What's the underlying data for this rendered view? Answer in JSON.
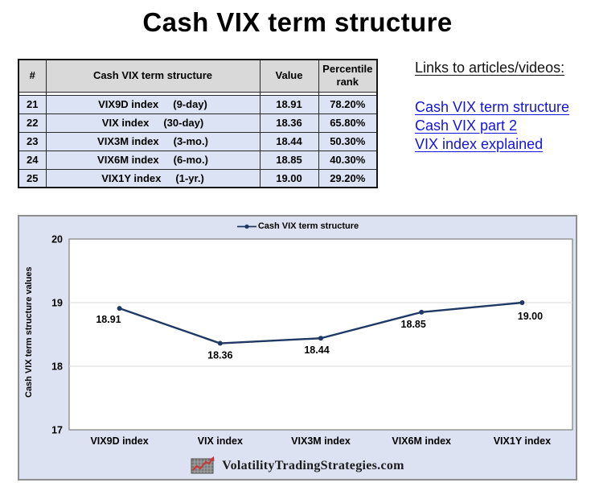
{
  "page_title": "Cash VIX term structure",
  "table": {
    "headers": {
      "num": "#",
      "name": "Cash VIX term structure",
      "value": "Value",
      "percentile": "Percentile rank"
    },
    "rows": [
      {
        "num": "21",
        "name": "VIX9D index",
        "period": "(9-day)",
        "value": "18.91",
        "percentile": "78.20%"
      },
      {
        "num": "22",
        "name": "VIX index",
        "period": "(30-day)",
        "value": "18.36",
        "percentile": "65.80%"
      },
      {
        "num": "23",
        "name": "VIX3M index",
        "period": "(3-mo.)",
        "value": "18.44",
        "percentile": "50.30%"
      },
      {
        "num": "24",
        "name": "VIX6M index",
        "period": "(6-mo.)",
        "value": "18.85",
        "percentile": "40.30%"
      },
      {
        "num": "25",
        "name": "VIX1Y index",
        "period": "(1-yr.)",
        "value": "19.00",
        "percentile": "29.20%"
      }
    ]
  },
  "links": {
    "heading": "Links to articles/videos:",
    "items": [
      "Cash VIX term structure",
      "Cash VIX part 2",
      "VIX index explained"
    ]
  },
  "chart_data": {
    "type": "line",
    "title": "Cash VIX term structure",
    "categories": [
      "VIX9D index",
      "VIX index",
      "VIX3M index",
      "VIX6M index",
      "VIX1Y index"
    ],
    "values": [
      18.91,
      18.36,
      18.44,
      18.85,
      19.0
    ],
    "data_labels": [
      "18.91",
      "18.36",
      "18.44",
      "18.85",
      "19.00"
    ],
    "xlabel": "",
    "ylabel": "Cash VIX term structure values",
    "ylim": [
      17,
      20
    ],
    "yticks": [
      20,
      19,
      18,
      17
    ],
    "grid": true,
    "legend_position": "top",
    "line_color": "#1f3864"
  },
  "footer": {
    "brand": "VolatilityTradingStrategies.com"
  },
  "colors": {
    "table_header_bg": "#d9d9d9",
    "table_row_bg": "#dce3f4",
    "chart_bg": "#dce2f1",
    "plot_bg": "#ffffff",
    "gridline": "#d9d9d9",
    "line_navy": "#1f3864",
    "link_blue": "#1414dd"
  }
}
